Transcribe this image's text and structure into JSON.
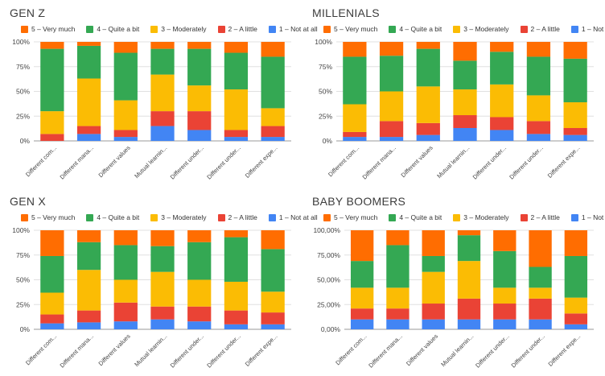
{
  "legend": {
    "entries": [
      "5 – Very much",
      "4 – Quite a bit",
      "3 – Moderately",
      "2 – A little",
      "1 – Not at all"
    ],
    "colors": [
      "#ff6d01",
      "#34a853",
      "#fbbc04",
      "#ea4335",
      "#4285f4"
    ]
  },
  "chart_data": [
    {
      "type": "bar",
      "stacked": true,
      "title": "GEN Z",
      "categories": [
        "Different com...",
        "Different mana...",
        "Different values",
        "Mutual learnin...",
        "Different under...",
        "Different under...",
        "Different expe..."
      ],
      "yticks": [
        "0%",
        "25%",
        "50%",
        "75%",
        "100%"
      ],
      "ylim": [
        0,
        100
      ],
      "legend_position": "top",
      "series": [
        {
          "name": "1 – Not at all",
          "values": [
            0,
            7,
            4,
            15,
            11,
            4,
            4
          ]
        },
        {
          "name": "2 – A little",
          "values": [
            7,
            8,
            7,
            15,
            19,
            7,
            11
          ]
        },
        {
          "name": "3 – Moderately",
          "values": [
            23,
            48,
            30,
            37,
            26,
            41,
            18
          ]
        },
        {
          "name": "4 – Quite a bit",
          "values": [
            63,
            33,
            48,
            26,
            37,
            37,
            52
          ]
        },
        {
          "name": "5 – Very much",
          "values": [
            7,
            4,
            11,
            7,
            7,
            11,
            15
          ]
        }
      ]
    },
    {
      "type": "bar",
      "stacked": true,
      "title": "MILLENIALS",
      "categories": [
        "Different com...",
        "Different mana...",
        "Different values",
        "Mutual learnin...",
        "Different under...",
        "Different under...",
        "Different expe..."
      ],
      "yticks": [
        "0%",
        "25%",
        "50%",
        "75%",
        "100%"
      ],
      "ylim": [
        0,
        100
      ],
      "legend_position": "top",
      "series": [
        {
          "name": "1 – Not at all",
          "values": [
            4,
            4,
            6,
            13,
            11,
            7,
            6
          ]
        },
        {
          "name": "2 – A little",
          "values": [
            5,
            16,
            12,
            13,
            13,
            13,
            7
          ]
        },
        {
          "name": "3 – Moderately",
          "values": [
            28,
            30,
            37,
            26,
            33,
            26,
            26
          ]
        },
        {
          "name": "4 – Quite a bit",
          "values": [
            48,
            36,
            38,
            29,
            33,
            39,
            44
          ]
        },
        {
          "name": "5 – Very much",
          "values": [
            15,
            14,
            7,
            19,
            10,
            15,
            17
          ]
        }
      ]
    },
    {
      "type": "bar",
      "stacked": true,
      "title": "GEN X",
      "categories": [
        "Different com...",
        "Different mana...",
        "Different values",
        "Mutual learnin...",
        "Different under...",
        "Different under...",
        "Different expe..."
      ],
      "yticks": [
        "0%",
        "25%",
        "50%",
        "75%",
        "100%"
      ],
      "ylim": [
        0,
        100
      ],
      "legend_position": "top",
      "series": [
        {
          "name": "1 – Not at all",
          "values": [
            6,
            7,
            8,
            10,
            8,
            5,
            5
          ]
        },
        {
          "name": "2 – A little",
          "values": [
            9,
            12,
            19,
            13,
            15,
            14,
            12
          ]
        },
        {
          "name": "3 – Moderately",
          "values": [
            22,
            41,
            23,
            35,
            27,
            29,
            21
          ]
        },
        {
          "name": "4 – Quite a bit",
          "values": [
            37,
            28,
            35,
            26,
            38,
            45,
            43
          ]
        },
        {
          "name": "5 – Very much",
          "values": [
            26,
            12,
            15,
            16,
            12,
            7,
            19
          ]
        }
      ]
    },
    {
      "type": "bar",
      "stacked": true,
      "title": "BABY BOOMERS",
      "categories": [
        "Different com...",
        "Different mana...",
        "Different values",
        "Mutual learnin...",
        "Different under...",
        "Different under...",
        "Different expe..."
      ],
      "yticks": [
        "0,00%",
        "25,00%",
        "50,00%",
        "75,00%",
        "100,00%"
      ],
      "ylim": [
        0,
        100
      ],
      "legend_position": "top",
      "series": [
        {
          "name": "1 – Not at all",
          "values": [
            10,
            10,
            10,
            10,
            10,
            10,
            5
          ]
        },
        {
          "name": "2 – A little",
          "values": [
            11,
            11,
            16,
            21,
            16,
            21,
            11
          ]
        },
        {
          "name": "3 – Moderately",
          "values": [
            21,
            21,
            32,
            38,
            16,
            11,
            16
          ]
        },
        {
          "name": "4 – Quite a bit",
          "values": [
            27,
            43,
            16,
            26,
            37,
            21,
            42
          ]
        },
        {
          "name": "5 – Very much",
          "values": [
            31,
            15,
            26,
            5,
            21,
            37,
            26
          ]
        }
      ]
    }
  ]
}
